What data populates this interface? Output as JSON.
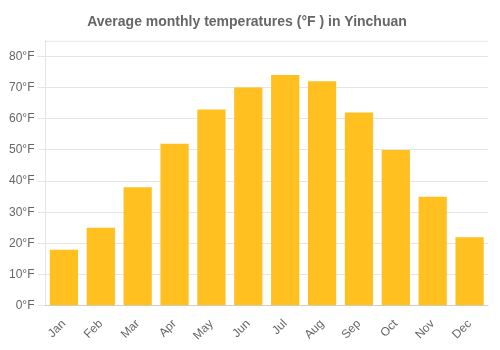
{
  "chart_data": {
    "type": "bar",
    "title": "Average monthly temperatures (°F ) in Yinchuan",
    "categories": [
      "Jan",
      "Feb",
      "Mar",
      "Apr",
      "May",
      "Jun",
      "Jul",
      "Aug",
      "Sep",
      "Oct",
      "Nov",
      "Dec"
    ],
    "values": [
      18,
      25,
      38,
      52,
      63,
      70,
      74,
      72,
      62,
      50,
      35,
      22
    ],
    "color": "#FFC020",
    "ylim": [
      0,
      85
    ],
    "yticks": [
      {
        "value": 0,
        "label": "0°F"
      },
      {
        "value": 10,
        "label": "10°F"
      },
      {
        "value": 20,
        "label": "20°F"
      },
      {
        "value": 30,
        "label": "30°F"
      },
      {
        "value": 40,
        "label": "40°F"
      },
      {
        "value": 50,
        "label": "50°F"
      },
      {
        "value": 60,
        "label": "60°F"
      },
      {
        "value": 70,
        "label": "70°F"
      },
      {
        "value": 80,
        "label": "80°F"
      }
    ],
    "grid": true
  }
}
